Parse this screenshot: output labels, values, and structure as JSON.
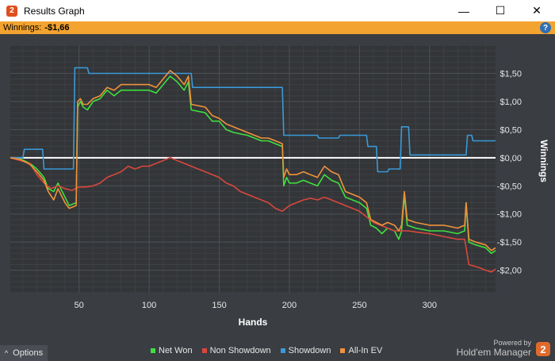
{
  "window": {
    "title": "Results Graph",
    "minimize": "—",
    "maximize": "☐",
    "close": "✕",
    "icon": "2"
  },
  "winbar": {
    "label": "Winnings:",
    "value": "-$1,66",
    "help": "?"
  },
  "options": {
    "label": "Options",
    "caret": "^"
  },
  "powered": {
    "line1": "Powered by",
    "line2": "Hold'em Manager",
    "logo": "2"
  },
  "colors": {
    "net_won": "#3ee03e",
    "non_showdown": "#d9473d",
    "showdown": "#3a9ad9",
    "all_in_ev": "#f0923a",
    "zero_line": "#ffffff",
    "background": "#3a3d42",
    "plot": "#333538",
    "orange_bar": "#f3a330"
  },
  "chart_data": {
    "type": "line",
    "xlabel": "Hands",
    "ylabel": "Winnings",
    "xlim": [
      1,
      347
    ],
    "ylim": [
      -2.4,
      2.0
    ],
    "x_ticks": [
      50,
      100,
      150,
      200,
      250,
      300
    ],
    "y_ticks": [
      {
        "value": 1.5,
        "label": "$1,50"
      },
      {
        "value": 1.0,
        "label": "$1,00"
      },
      {
        "value": 0.5,
        "label": "$0,50"
      },
      {
        "value": 0.0,
        "label": "$0,00"
      },
      {
        "value": -0.5,
        "label": "-$0,50"
      },
      {
        "value": -1.0,
        "label": "-$1,00"
      },
      {
        "value": -1.5,
        "label": "-$1,50"
      },
      {
        "value": -2.0,
        "label": "-$2,00"
      }
    ],
    "grid": true,
    "legend_position": "bottom",
    "series": [
      {
        "name": "Net Won",
        "color_key": "net_won",
        "points": [
          [
            1,
            0
          ],
          [
            8,
            -0.02
          ],
          [
            15,
            -0.1
          ],
          [
            20,
            -0.2
          ],
          [
            25,
            -0.35
          ],
          [
            28,
            -0.55
          ],
          [
            32,
            -0.6
          ],
          [
            35,
            -0.45
          ],
          [
            40,
            -0.7
          ],
          [
            43,
            -0.85
          ],
          [
            48,
            -0.8
          ],
          [
            49,
            0.9
          ],
          [
            51,
            1.0
          ],
          [
            53,
            0.9
          ],
          [
            56,
            0.85
          ],
          [
            60,
            1.0
          ],
          [
            65,
            1.05
          ],
          [
            70,
            1.2
          ],
          [
            75,
            1.1
          ],
          [
            80,
            1.2
          ],
          [
            90,
            1.2
          ],
          [
            100,
            1.2
          ],
          [
            105,
            1.15
          ],
          [
            110,
            1.3
          ],
          [
            115,
            1.45
          ],
          [
            120,
            1.35
          ],
          [
            125,
            1.2
          ],
          [
            128,
            1.35
          ],
          [
            130,
            0.85
          ],
          [
            140,
            0.8
          ],
          [
            145,
            0.65
          ],
          [
            150,
            0.65
          ],
          [
            155,
            0.5
          ],
          [
            160,
            0.45
          ],
          [
            170,
            0.4
          ],
          [
            175,
            0.35
          ],
          [
            180,
            0.3
          ],
          [
            185,
            0.3
          ],
          [
            190,
            0.25
          ],
          [
            195,
            0.2
          ],
          [
            196,
            -0.5
          ],
          [
            198,
            -0.35
          ],
          [
            200,
            -0.45
          ],
          [
            205,
            -0.45
          ],
          [
            210,
            -0.4
          ],
          [
            215,
            -0.45
          ],
          [
            220,
            -0.5
          ],
          [
            225,
            -0.3
          ],
          [
            230,
            -0.4
          ],
          [
            235,
            -0.45
          ],
          [
            240,
            -0.7
          ],
          [
            245,
            -0.75
          ],
          [
            250,
            -0.8
          ],
          [
            255,
            -0.9
          ],
          [
            258,
            -1.2
          ],
          [
            262,
            -1.25
          ],
          [
            266,
            -1.35
          ],
          [
            270,
            -1.25
          ],
          [
            275,
            -1.3
          ],
          [
            278,
            -1.45
          ],
          [
            280,
            -1.3
          ],
          [
            282,
            -0.65
          ],
          [
            284,
            -1.2
          ],
          [
            290,
            -1.25
          ],
          [
            300,
            -1.3
          ],
          [
            310,
            -1.3
          ],
          [
            320,
            -1.35
          ],
          [
            325,
            -1.3
          ],
          [
            326,
            -0.8
          ],
          [
            328,
            -1.5
          ],
          [
            333,
            -1.55
          ],
          [
            340,
            -1.6
          ],
          [
            344,
            -1.7
          ],
          [
            347,
            -1.65
          ]
        ]
      },
      {
        "name": "Non Showdown",
        "color_key": "non_showdown",
        "points": [
          [
            1,
            0
          ],
          [
            8,
            -0.05
          ],
          [
            15,
            -0.1
          ],
          [
            20,
            -0.3
          ],
          [
            25,
            -0.45
          ],
          [
            30,
            -0.55
          ],
          [
            35,
            -0.5
          ],
          [
            40,
            -0.55
          ],
          [
            45,
            -0.58
          ],
          [
            50,
            -0.52
          ],
          [
            55,
            -0.52
          ],
          [
            60,
            -0.5
          ],
          [
            65,
            -0.45
          ],
          [
            70,
            -0.35
          ],
          [
            75,
            -0.3
          ],
          [
            80,
            -0.25
          ],
          [
            85,
            -0.15
          ],
          [
            90,
            -0.2
          ],
          [
            95,
            -0.15
          ],
          [
            100,
            -0.15
          ],
          [
            105,
            -0.1
          ],
          [
            110,
            -0.05
          ],
          [
            115,
            0.0
          ],
          [
            120,
            -0.05
          ],
          [
            125,
            -0.1
          ],
          [
            130,
            -0.15
          ],
          [
            135,
            -0.2
          ],
          [
            140,
            -0.25
          ],
          [
            145,
            -0.3
          ],
          [
            150,
            -0.35
          ],
          [
            155,
            -0.45
          ],
          [
            160,
            -0.5
          ],
          [
            165,
            -0.6
          ],
          [
            170,
            -0.65
          ],
          [
            175,
            -0.7
          ],
          [
            180,
            -0.75
          ],
          [
            185,
            -0.8
          ],
          [
            190,
            -0.9
          ],
          [
            195,
            -0.95
          ],
          [
            200,
            -0.85
          ],
          [
            205,
            -0.8
          ],
          [
            210,
            -0.75
          ],
          [
            215,
            -0.72
          ],
          [
            220,
            -0.75
          ],
          [
            225,
            -0.7
          ],
          [
            230,
            -0.75
          ],
          [
            235,
            -0.8
          ],
          [
            240,
            -0.85
          ],
          [
            245,
            -0.9
          ],
          [
            250,
            -0.95
          ],
          [
            255,
            -1.05
          ],
          [
            260,
            -1.15
          ],
          [
            265,
            -1.2
          ],
          [
            270,
            -1.25
          ],
          [
            275,
            -1.3
          ],
          [
            280,
            -1.3
          ],
          [
            285,
            -1.3
          ],
          [
            290,
            -1.32
          ],
          [
            300,
            -1.35
          ],
          [
            310,
            -1.4
          ],
          [
            320,
            -1.45
          ],
          [
            325,
            -1.45
          ],
          [
            328,
            -1.9
          ],
          [
            335,
            -1.95
          ],
          [
            340,
            -2.0
          ],
          [
            344,
            -2.03
          ],
          [
            347,
            -1.98
          ]
        ]
      },
      {
        "name": "Showdown",
        "color_key": "showdown",
        "points": [
          [
            1,
            0
          ],
          [
            10,
            0
          ],
          [
            11,
            0.15
          ],
          [
            24,
            0.15
          ],
          [
            25,
            -0.2
          ],
          [
            46,
            -0.2
          ],
          [
            47,
            1.6
          ],
          [
            56,
            1.6
          ],
          [
            57,
            1.5
          ],
          [
            130,
            1.5
          ],
          [
            131,
            1.25
          ],
          [
            195,
            1.25
          ],
          [
            196,
            0.4
          ],
          [
            220,
            0.4
          ],
          [
            221,
            0.35
          ],
          [
            235,
            0.35
          ],
          [
            236,
            0.4
          ],
          [
            255,
            0.4
          ],
          [
            256,
            0.2
          ],
          [
            262,
            0.2
          ],
          [
            263,
            -0.25
          ],
          [
            270,
            -0.25
          ],
          [
            271,
            -0.2
          ],
          [
            279,
            -0.2
          ],
          [
            280,
            0.55
          ],
          [
            285,
            0.55
          ],
          [
            286,
            0.05
          ],
          [
            326,
            0.05
          ],
          [
            327,
            0.4
          ],
          [
            330,
            0.4
          ],
          [
            331,
            0.3
          ],
          [
            347,
            0.3
          ]
        ]
      },
      {
        "name": "All-In EV",
        "color_key": "all_in_ev",
        "points": [
          [
            1,
            0
          ],
          [
            8,
            -0.03
          ],
          [
            15,
            -0.12
          ],
          [
            20,
            -0.25
          ],
          [
            25,
            -0.4
          ],
          [
            28,
            -0.6
          ],
          [
            32,
            -0.75
          ],
          [
            35,
            -0.55
          ],
          [
            40,
            -0.8
          ],
          [
            43,
            -0.9
          ],
          [
            48,
            -0.85
          ],
          [
            49,
            1.0
          ],
          [
            51,
            1.05
          ],
          [
            53,
            0.95
          ],
          [
            56,
            0.95
          ],
          [
            60,
            1.05
          ],
          [
            65,
            1.1
          ],
          [
            70,
            1.25
          ],
          [
            75,
            1.2
          ],
          [
            80,
            1.3
          ],
          [
            90,
            1.3
          ],
          [
            100,
            1.3
          ],
          [
            105,
            1.25
          ],
          [
            110,
            1.4
          ],
          [
            115,
            1.55
          ],
          [
            120,
            1.45
          ],
          [
            125,
            1.3
          ],
          [
            128,
            1.45
          ],
          [
            130,
            0.95
          ],
          [
            140,
            0.9
          ],
          [
            145,
            0.75
          ],
          [
            150,
            0.7
          ],
          [
            155,
            0.6
          ],
          [
            160,
            0.55
          ],
          [
            170,
            0.45
          ],
          [
            175,
            0.4
          ],
          [
            180,
            0.35
          ],
          [
            185,
            0.35
          ],
          [
            190,
            0.3
          ],
          [
            195,
            0.25
          ],
          [
            196,
            -0.35
          ],
          [
            198,
            -0.2
          ],
          [
            200,
            -0.3
          ],
          [
            205,
            -0.3
          ],
          [
            210,
            -0.25
          ],
          [
            215,
            -0.3
          ],
          [
            220,
            -0.35
          ],
          [
            225,
            -0.15
          ],
          [
            230,
            -0.25
          ],
          [
            235,
            -0.3
          ],
          [
            240,
            -0.6
          ],
          [
            245,
            -0.65
          ],
          [
            250,
            -0.7
          ],
          [
            255,
            -0.8
          ],
          [
            258,
            -1.1
          ],
          [
            262,
            -1.15
          ],
          [
            266,
            -1.2
          ],
          [
            270,
            -1.15
          ],
          [
            275,
            -1.2
          ],
          [
            278,
            -1.3
          ],
          [
            280,
            -1.2
          ],
          [
            282,
            -0.6
          ],
          [
            284,
            -1.1
          ],
          [
            290,
            -1.15
          ],
          [
            300,
            -1.2
          ],
          [
            310,
            -1.2
          ],
          [
            320,
            -1.25
          ],
          [
            325,
            -1.2
          ],
          [
            326,
            -0.8
          ],
          [
            328,
            -1.45
          ],
          [
            333,
            -1.5
          ],
          [
            340,
            -1.55
          ],
          [
            344,
            -1.65
          ],
          [
            347,
            -1.6
          ]
        ]
      }
    ]
  }
}
